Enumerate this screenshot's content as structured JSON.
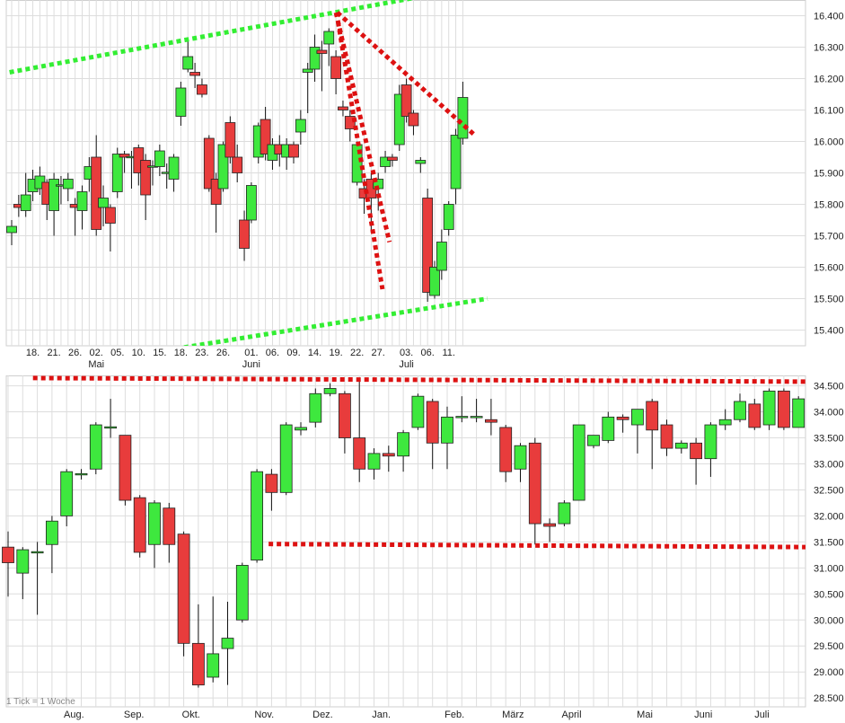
{
  "chart_data": [
    {
      "type": "candlestick",
      "panel": "daily",
      "y_axis_position": "right",
      "ylim": [
        15350,
        16450
      ],
      "y_ticks": [
        "16.400",
        "16.300",
        "16.200",
        "16.100",
        "16.000",
        "15.900",
        "15.800",
        "15.700",
        "15.600",
        "15.500",
        "15.400"
      ],
      "x_ticks": [
        {
          "day": "18.",
          "month": "",
          "i": 3
        },
        {
          "day": "21.",
          "month": "",
          "i": 6
        },
        {
          "day": "26.",
          "month": "",
          "i": 9
        },
        {
          "day": "02.",
          "month": "Mai",
          "i": 12
        },
        {
          "day": "05.",
          "month": "",
          "i": 15
        },
        {
          "day": "10.",
          "month": "",
          "i": 18
        },
        {
          "day": "15.",
          "month": "",
          "i": 21
        },
        {
          "day": "18.",
          "month": "",
          "i": 24
        },
        {
          "day": "23.",
          "month": "",
          "i": 27
        },
        {
          "day": "26.",
          "month": "",
          "i": 30
        },
        {
          "day": "01.",
          "month": "Juni",
          "i": 34
        },
        {
          "day": "06.",
          "month": "",
          "i": 37
        },
        {
          "day": "09.",
          "month": "",
          "i": 40
        },
        {
          "day": "14.",
          "month": "",
          "i": 43
        },
        {
          "day": "19.",
          "month": "",
          "i": 46
        },
        {
          "day": "22.",
          "month": "",
          "i": 49
        },
        {
          "day": "27.",
          "month": "",
          "i": 52
        },
        {
          "day": "03.",
          "month": "Juli",
          "i": 56
        },
        {
          "day": "06.",
          "month": "",
          "i": 59
        },
        {
          "day": "11.",
          "month": "",
          "i": 62
        }
      ],
      "candles": [
        [
          15710,
          15730,
          15670,
          15750
        ],
        [
          15800,
          15790,
          15760,
          15830
        ],
        [
          15780,
          15830,
          15760,
          15900
        ],
        [
          15840,
          15880,
          15810,
          15910
        ],
        [
          15850,
          15890,
          15830,
          15920
        ],
        [
          15870,
          15800,
          15750,
          15880
        ],
        [
          15780,
          15880,
          15700,
          15900
        ],
        [
          15860,
          15860,
          15800,
          15890
        ],
        [
          15850,
          15880,
          15810,
          15900
        ],
        [
          15800,
          15790,
          15700,
          15820
        ],
        [
          15780,
          15840,
          15720,
          15860
        ],
        [
          15880,
          15920,
          15840,
          15950
        ],
        [
          15950,
          15720,
          15700,
          16020
        ],
        [
          15790,
          15820,
          15730,
          15860
        ],
        [
          15790,
          15740,
          15650,
          15800
        ],
        [
          15840,
          15960,
          15820,
          15980
        ],
        [
          15960,
          15950,
          15900,
          15970
        ],
        [
          15950,
          15950,
          15850,
          15970
        ],
        [
          15980,
          15900,
          15860,
          15990
        ],
        [
          15940,
          15830,
          15750,
          15960
        ],
        [
          15920,
          15920,
          15860,
          15940
        ],
        [
          15920,
          15970,
          15890,
          15990
        ],
        [
          15900,
          15900,
          15850,
          15930
        ],
        [
          15880,
          15950,
          15840,
          15960
        ],
        [
          16080,
          16170,
          16050,
          16190
        ],
        [
          16230,
          16270,
          16220,
          16330
        ],
        [
          16220,
          16210,
          16170,
          16250
        ],
        [
          16180,
          16150,
          16140,
          16200
        ],
        [
          16010,
          15850,
          15840,
          16020
        ],
        [
          15880,
          15800,
          15710,
          15900
        ],
        [
          15850,
          15990,
          15840,
          16000
        ],
        [
          16060,
          15950,
          15930,
          16080
        ],
        [
          15950,
          15900,
          15870,
          15990
        ],
        [
          15750,
          15660,
          15620,
          15780
        ],
        [
          15750,
          15860,
          15740,
          15870
        ],
        [
          15950,
          16050,
          15930,
          16060
        ],
        [
          16070,
          15960,
          15940,
          16110
        ],
        [
          15940,
          15990,
          15910,
          16010
        ],
        [
          15990,
          15960,
          15920,
          16020
        ],
        [
          15950,
          15990,
          15910,
          16010
        ],
        [
          15990,
          15950,
          15930,
          16000
        ],
        [
          16030,
          16070,
          15990,
          16100
        ],
        [
          16220,
          16230,
          16090,
          16250
        ],
        [
          16230,
          16300,
          16190,
          16340
        ],
        [
          16290,
          16280,
          16160,
          16320
        ],
        [
          16310,
          16350,
          16240,
          16360
        ],
        [
          16270,
          16200,
          16150,
          16290
        ],
        [
          16110,
          16100,
          16080,
          16130
        ],
        [
          16080,
          16040,
          16000,
          16100
        ],
        [
          15870,
          15990,
          15860,
          16000
        ],
        [
          15850,
          15820,
          15770,
          15880
        ],
        [
          15880,
          15820,
          15710,
          15900
        ],
        [
          15850,
          15880,
          15780,
          15900
        ],
        [
          15920,
          15950,
          15900,
          15970
        ],
        [
          15950,
          15940,
          15920,
          15960
        ],
        [
          15990,
          16150,
          15970,
          16180
        ],
        [
          16180,
          16080,
          16060,
          16200
        ],
        [
          16090,
          16050,
          16020,
          16100
        ],
        [
          15930,
          15940,
          15900,
          15950
        ],
        [
          15820,
          15520,
          15490,
          15850
        ],
        [
          15510,
          15600,
          15500,
          15620
        ],
        [
          15590,
          15680,
          15560,
          15720
        ],
        [
          15720,
          15800,
          15700,
          15810
        ],
        [
          15850,
          16020,
          15800,
          16040
        ],
        [
          16010,
          16140,
          15990,
          16190
        ]
      ],
      "trendlines_green": [
        {
          "from": [
            -0.3,
            16220
          ],
          "to": [
            67.5,
            16500
          ]
        },
        {
          "from": [
            12.0,
            15300
          ],
          "to": [
            67.5,
            15500
          ]
        }
      ],
      "trendlines_red": [
        {
          "from": [
            46.2,
            16410
          ],
          "to": [
            65.7,
            16020
          ]
        },
        {
          "from": [
            46.0,
            16410
          ],
          "to": [
            53.6,
            15680
          ]
        },
        {
          "from": [
            46.3,
            16380
          ],
          "to": [
            52.6,
            15530
          ]
        }
      ]
    },
    {
      "type": "candlestick",
      "panel": "weekly",
      "y_axis_position": "right",
      "ylim": [
        28330,
        34700
      ],
      "y_ticks": [
        "34.500",
        "34.000",
        "33.500",
        "33.000",
        "32.500",
        "32.000",
        "31.500",
        "31.000",
        "30.500",
        "30.000",
        "29.500",
        "29.000",
        "28.500"
      ],
      "x_ticks": [
        {
          "label": "Aug.",
          "i": 4.5
        },
        {
          "label": "Sep.",
          "i": 8.6
        },
        {
          "label": "Okt.",
          "i": 12.5
        },
        {
          "label": "Nov.",
          "i": 17.5
        },
        {
          "label": "Dez.",
          "i": 21.5
        },
        {
          "label": "Jan.",
          "i": 25.5
        },
        {
          "label": "Feb.",
          "i": 30.5
        },
        {
          "label": "März",
          "i": 34.5
        },
        {
          "label": "April",
          "i": 38.5
        },
        {
          "label": "Mai",
          "i": 43.5
        },
        {
          "label": "Juni",
          "i": 47.5
        },
        {
          "label": "Juli",
          "i": 51.5
        }
      ],
      "candles": [
        [
          31400,
          31100,
          30450,
          31700
        ],
        [
          30900,
          31350,
          30400,
          31400
        ],
        [
          31300,
          31300,
          30100,
          31500
        ],
        [
          31450,
          31900,
          30900,
          32000
        ],
        [
          32000,
          32850,
          31800,
          32900
        ],
        [
          32800,
          32800,
          32700,
          32900
        ],
        [
          32900,
          33750,
          32800,
          33800
        ],
        [
          33700,
          33700,
          33500,
          34250
        ],
        [
          33550,
          32300,
          32200,
          33550
        ],
        [
          32350,
          31300,
          31200,
          32400
        ],
        [
          31450,
          32250,
          31000,
          32300
        ],
        [
          32150,
          31450,
          31100,
          32250
        ],
        [
          31650,
          29550,
          29300,
          31700
        ],
        [
          29550,
          28750,
          28700,
          30300
        ],
        [
          28900,
          29350,
          28800,
          30450
        ],
        [
          29450,
          29650,
          28750,
          30350
        ],
        [
          30000,
          31050,
          29950,
          31100
        ],
        [
          31150,
          32850,
          31100,
          32900
        ],
        [
          32800,
          32450,
          32100,
          32900
        ],
        [
          32450,
          33750,
          32400,
          33800
        ],
        [
          33650,
          33700,
          33550,
          33800
        ],
        [
          33800,
          34350,
          33700,
          34450
        ],
        [
          34350,
          34450,
          34300,
          34550
        ],
        [
          34350,
          33500,
          33200,
          34400
        ],
        [
          33500,
          32900,
          32650,
          34600
        ],
        [
          32900,
          33200,
          32700,
          33300
        ],
        [
          33200,
          33150,
          32850,
          33350
        ],
        [
          33150,
          33600,
          32850,
          33650
        ],
        [
          33700,
          34300,
          33650,
          34350
        ],
        [
          34200,
          33400,
          32900,
          34250
        ],
        [
          33400,
          33900,
          32900,
          34100
        ],
        [
          33900,
          33900,
          33800,
          34300
        ],
        [
          33900,
          33900,
          33800,
          34250
        ],
        [
          33850,
          33800,
          33550,
          34250
        ],
        [
          33700,
          32850,
          32650,
          33750
        ],
        [
          32900,
          33350,
          32650,
          33400
        ],
        [
          33400,
          31850,
          31450,
          33500
        ],
        [
          31850,
          31800,
          31500,
          31950
        ],
        [
          31850,
          32250,
          31800,
          32300
        ],
        [
          32300,
          33750,
          32300,
          33750
        ],
        [
          33350,
          33550,
          33300,
          33550
        ],
        [
          33450,
          33900,
          33400,
          34000
        ],
        [
          33900,
          33850,
          33600,
          33950
        ],
        [
          33750,
          34050,
          33200,
          34050
        ],
        [
          34200,
          33650,
          32900,
          34250
        ],
        [
          33750,
          33300,
          33150,
          33850
        ],
        [
          33300,
          33400,
          33200,
          33450
        ],
        [
          33400,
          33100,
          32600,
          33500
        ],
        [
          33100,
          33750,
          32750,
          33800
        ],
        [
          33750,
          33850,
          33650,
          34050
        ],
        [
          33850,
          34200,
          33800,
          34350
        ],
        [
          34150,
          33700,
          33650,
          34250
        ],
        [
          33750,
          34400,
          33650,
          34450
        ],
        [
          34400,
          33700,
          33650,
          34450
        ],
        [
          33700,
          34250,
          33700,
          34300
        ]
      ],
      "trendlines_red": [
        {
          "from": [
            1.7,
            34650
          ],
          "to": [
            54.9,
            34580
          ]
        },
        {
          "from": [
            17.8,
            31460
          ],
          "to": [
            54.9,
            31400
          ]
        }
      ],
      "note": "1 Tick = 1 Woche"
    }
  ],
  "colors": {
    "up": "#3ee83e",
    "down": "#e83c3c",
    "wick": "#111111",
    "grid": "#dddddd",
    "trend_green": "#33ee33",
    "trend_red": "#dd1111"
  }
}
